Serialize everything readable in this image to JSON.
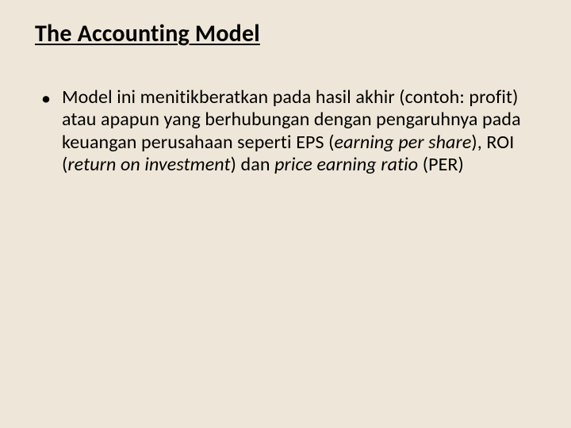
{
  "slide": {
    "background_color": "#eee6d8",
    "text_color": "#000000",
    "font_family": "Calibri, 'Segoe UI', Arial, sans-serif",
    "title": {
      "text": "The Accounting Model",
      "fontsize": 30,
      "bold": true,
      "underline": true
    },
    "bullets": [
      {
        "runs": [
          {
            "text": "Model ini menitikberatkan pada hasil akhir (contoh: profit) atau apapun yang berhubungan dengan pengaruhnya pada keuangan perusahaan seperti EPS (",
            "italic": false
          },
          {
            "text": "earning per share",
            "italic": true
          },
          {
            "text": "), ROI (",
            "italic": false
          },
          {
            "text": "return on investment",
            "italic": true
          },
          {
            "text": ") dan ",
            "italic": false
          },
          {
            "text": "price earning ratio",
            "italic": true
          },
          {
            "text": " (PER)",
            "italic": false
          }
        ],
        "fontsize": 24
      }
    ]
  }
}
